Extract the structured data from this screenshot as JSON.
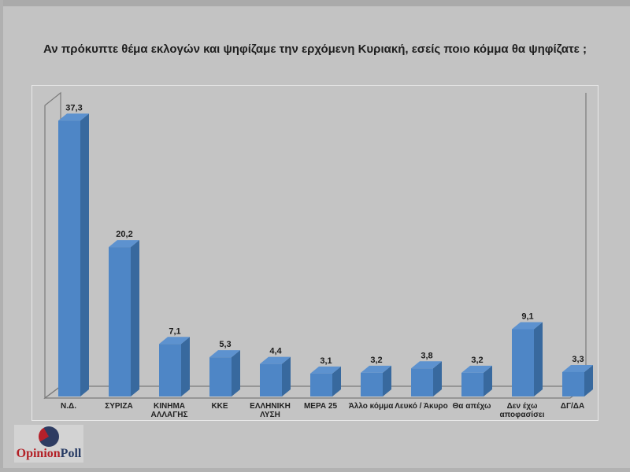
{
  "slide": {
    "title": "Αν πρόκυπτε θέμα εκλογών και ψηφίζαμε την ερχόμενη Κυριακή, εσείς ποιο κόμμα θα ψηφίζατε ;"
  },
  "chart_data": {
    "type": "bar",
    "style": "3d-column",
    "title": "",
    "xlabel": "",
    "ylabel": "",
    "ylim": [
      0,
      40
    ],
    "grid": false,
    "legend": "none",
    "categories": [
      "Ν.Δ.",
      "ΣΥΡΙΖΑ",
      "ΚΙΝΗΜΑ ΑΛΛΑΓΗΣ",
      "ΚΚΕ",
      "ΕΛΛΗΝΙΚΗ ΛΥΣΗ",
      "ΜΕΡΑ 25",
      "Άλλο κόμμα",
      "Λευκό / Άκυρο",
      "Θα απέχω",
      "Δεν έχω αποφασίσει",
      "ΔΓ/ΔΑ"
    ],
    "category_lines": [
      [
        "Ν.Δ."
      ],
      [
        "ΣΥΡΙΖΑ"
      ],
      [
        "ΚΙΝΗΜΑ",
        "ΑΛΛΑΓΗΣ"
      ],
      [
        "ΚΚΕ"
      ],
      [
        "ΕΛΛΗΝΙΚΗ",
        "ΛΥΣΗ"
      ],
      [
        "ΜΕΡΑ 25"
      ],
      [
        "Άλλο κόμμα"
      ],
      [
        "Λευκό / Άκυρο"
      ],
      [
        "Θα απέχω"
      ],
      [
        "Δεν έχω",
        "αποφασίσει"
      ],
      [
        "ΔΓ/ΔΑ"
      ]
    ],
    "values": [
      37.3,
      20.2,
      7.1,
      5.3,
      4.4,
      3.1,
      3.2,
      3.8,
      3.2,
      9.1,
      3.3
    ],
    "value_labels": [
      "37,3",
      "20,2",
      "7,1",
      "5,3",
      "4,4",
      "3,1",
      "3,2",
      "3,8",
      "3,2",
      "9,1",
      "3,3"
    ],
    "colors": {
      "bar_front": "#4e86c6",
      "bar_top": "#5d92cf",
      "bar_side": "#38699e",
      "axis_line": "#7a7a7a",
      "value_label": "#1a1a1a",
      "category_label": "#222222"
    }
  },
  "logo": {
    "brand_red": "Opinion",
    "brand_navy": "Poll",
    "pie_icon": "pie-chart-icon",
    "red": "#b32026",
    "navy": "#263a63"
  }
}
